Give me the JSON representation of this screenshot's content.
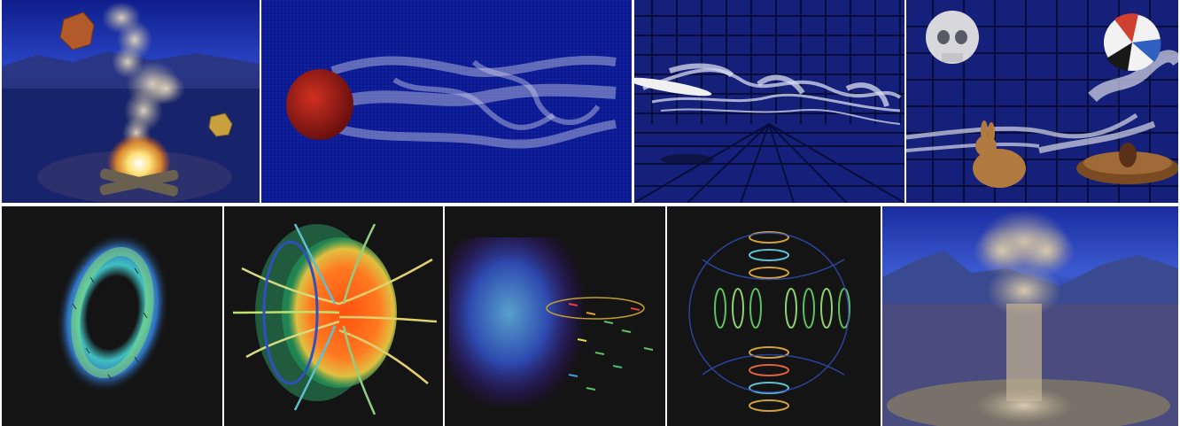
{
  "figure": {
    "rows": 2,
    "panels_top": [
      "campfire-smoke",
      "sphere-smoke-wake",
      "wing-smoke-trails",
      "skull-bunny-smoke"
    ],
    "panels_bottom": [
      "vortex-ring-vectors",
      "field-lines-sphere",
      "volume-vector-field",
      "helical-streamlines",
      "mushroom-cloud"
    ]
  },
  "colors": {
    "night_sky": "#1a2a9a",
    "deep_blue": "#0a1a8a",
    "grid_blue": "#14206e",
    "dark_bg": "#141414",
    "smoke": "#d8cfb8",
    "fire": "#ffd060"
  }
}
